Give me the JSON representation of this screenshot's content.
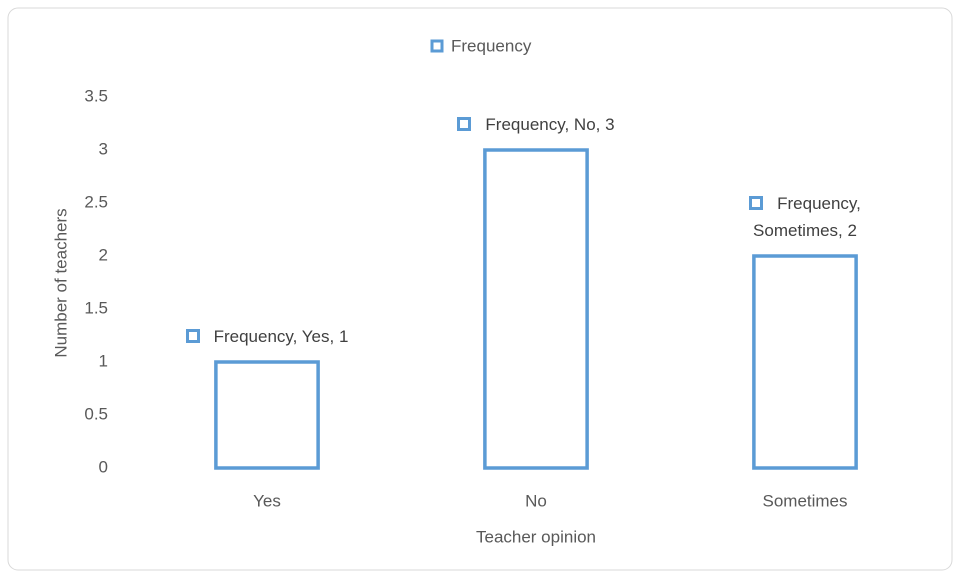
{
  "chart_data": {
    "type": "bar",
    "categories": [
      "Yes",
      "No",
      "Sometimes"
    ],
    "series": [
      {
        "name": "Frequency",
        "color": "#5b9bd5",
        "values": [
          1,
          3,
          2
        ],
        "value_labels": [
          "Frequency, Yes, 1",
          "Frequency, No, 3",
          "Frequency, Sometimes, 2"
        ]
      }
    ],
    "x_label": "Teacher opinion",
    "y_label": "Number of teachers",
    "ylim": [
      0,
      3.5
    ],
    "yticks": [
      0,
      0.5,
      1,
      1.5,
      2,
      2.5,
      3,
      3.5
    ],
    "grid": false,
    "legend": "top"
  }
}
